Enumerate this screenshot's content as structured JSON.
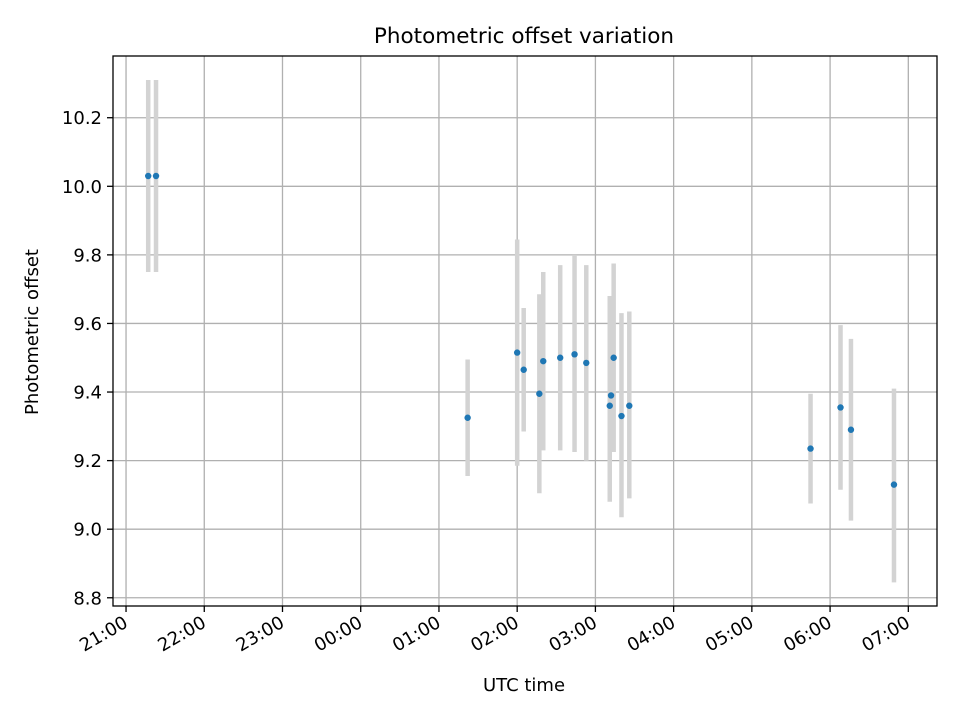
{
  "chart_data": {
    "type": "scatter",
    "title": "Photometric offset variation",
    "xlabel": "UTC time",
    "ylabel": "Photometric offset",
    "x_axis_type": "time",
    "grid": true,
    "xlim": [
      "20:50",
      "07:22"
    ],
    "ylim": [
      8.776,
      10.38
    ],
    "xticks": [
      "21:00",
      "22:00",
      "23:00",
      "00:00",
      "01:00",
      "02:00",
      "03:00",
      "04:00",
      "05:00",
      "06:00",
      "07:00"
    ],
    "yticks": [
      "8.8",
      "9.0",
      "9.2",
      "9.4",
      "9.6",
      "9.8",
      "10.0",
      "10.2"
    ],
    "colors": {
      "point": "#1f77b4",
      "errorbar": "#d3d3d3",
      "grid": "#b0b0b0"
    },
    "points": [
      {
        "x": "21:17",
        "y": 10.03,
        "yerr_low": 9.75,
        "yerr_high": 10.31
      },
      {
        "x": "21:23",
        "y": 10.03,
        "yerr_low": 9.75,
        "yerr_high": 10.31
      },
      {
        "x": "01:22",
        "y": 9.325,
        "yerr_low": 9.155,
        "yerr_high": 9.495
      },
      {
        "x": "02:00",
        "y": 9.515,
        "yerr_low": 9.185,
        "yerr_high": 9.845
      },
      {
        "x": "02:05",
        "y": 9.465,
        "yerr_low": 9.285,
        "yerr_high": 9.645
      },
      {
        "x": "02:17",
        "y": 9.395,
        "yerr_low": 9.105,
        "yerr_high": 9.685
      },
      {
        "x": "02:20",
        "y": 9.49,
        "yerr_low": 9.23,
        "yerr_high": 9.75
      },
      {
        "x": "02:33",
        "y": 9.5,
        "yerr_low": 9.23,
        "yerr_high": 9.77
      },
      {
        "x": "02:44",
        "y": 9.51,
        "yerr_low": 9.225,
        "yerr_high": 9.8
      },
      {
        "x": "02:53",
        "y": 9.485,
        "yerr_low": 9.2,
        "yerr_high": 9.77
      },
      {
        "x": "03:11",
        "y": 9.36,
        "yerr_low": 9.08,
        "yerr_high": 9.68
      },
      {
        "x": "03:12",
        "y": 9.39,
        "yerr_low": 9.23,
        "yerr_high": 9.55
      },
      {
        "x": "03:14",
        "y": 9.5,
        "yerr_low": 9.225,
        "yerr_high": 9.775
      },
      {
        "x": "03:20",
        "y": 9.33,
        "yerr_low": 9.035,
        "yerr_high": 9.63
      },
      {
        "x": "03:26",
        "y": 9.36,
        "yerr_low": 9.09,
        "yerr_high": 9.635
      },
      {
        "x": "05:45",
        "y": 9.235,
        "yerr_low": 9.075,
        "yerr_high": 9.395
      },
      {
        "x": "06:08",
        "y": 9.355,
        "yerr_low": 9.115,
        "yerr_high": 9.595
      },
      {
        "x": "06:16",
        "y": 9.29,
        "yerr_low": 9.025,
        "yerr_high": 9.555
      },
      {
        "x": "06:49",
        "y": 9.13,
        "yerr_low": 8.845,
        "yerr_high": 9.41
      }
    ]
  }
}
